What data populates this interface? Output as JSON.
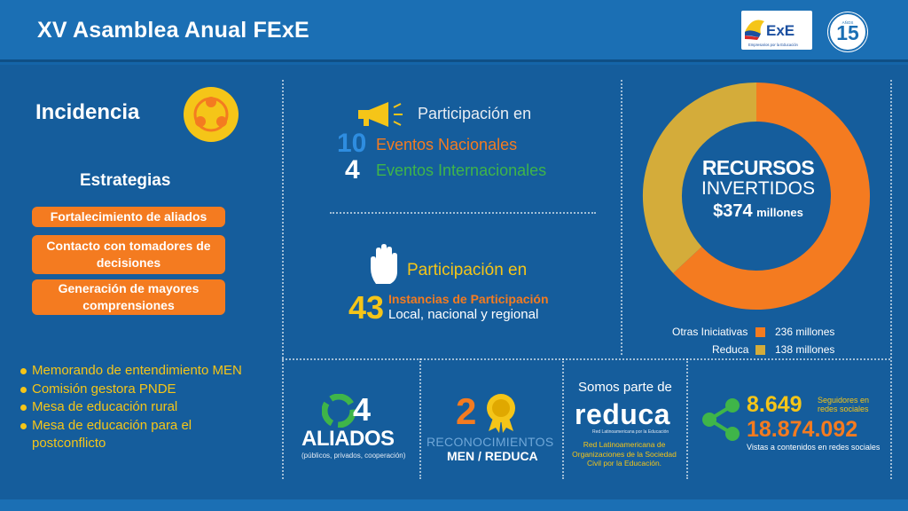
{
  "header": {
    "title": "XV Asamblea Anual FExE",
    "logo_text": "ExE",
    "logo_tagline": "Empresarios por la Educación",
    "anniversary_number": "15",
    "anniversary_word": "AÑOS"
  },
  "incidencia": {
    "title": "Incidencia",
    "strategies_title": "Estrategias",
    "strategies": [
      "Fortalecimiento de aliados",
      "Contacto con tomadores de decisiones",
      "Generación de mayores comprensiones"
    ],
    "bullets": [
      "Memorando de entendimiento MEN",
      "Comisión gestora PNDE",
      "Mesa de educación rural",
      "Mesa de educación para el postconflicto"
    ]
  },
  "events": {
    "label": "Participación en",
    "national_count": "10",
    "national_label": "Eventos Nacionales",
    "international_count": "4",
    "international_label": "Eventos Internacionales"
  },
  "instances": {
    "label": "Participación en",
    "count": "43",
    "line1": "Instancias de Participación",
    "line2": "Local, nacional y regional"
  },
  "resources": {
    "line1": "RECURSOS",
    "line2": "INVERTIDOS",
    "total": "$374",
    "total_unit": "millones",
    "legend": [
      {
        "label": "Otras Iniciativas",
        "value_text": "236 millones",
        "value": 236,
        "color": "#f47b20"
      },
      {
        "label": "Reduca",
        "value_text": "138 millones",
        "value": 138,
        "color": "#d4ac3a"
      }
    ]
  },
  "allies": {
    "count": "4",
    "label": "ALIADOS",
    "sublabel": "(públicos, privados, cooperación)"
  },
  "recognitions": {
    "count": "2",
    "label": "RECONOCIMIENTOS",
    "sublabel": "MEN / REDUCA"
  },
  "reduca": {
    "intro": "Somos parte de",
    "name": "reduca",
    "tiny": "Red Latinoamericana por la Educación",
    "description": "Red Latinoamericana de Organizaciones de la Sociedad Civil por la Educación."
  },
  "social": {
    "followers": "8.649",
    "followers_label": "Seguidores en redes sociales",
    "views": "18.874.092",
    "views_label": "Vistas a contenidos en redes sociales"
  },
  "colors": {
    "orange": "#f47b20",
    "yellow": "#f5c518",
    "gold": "#d4ac3a",
    "green": "#3fb549",
    "blue_bg": "#155d9c"
  }
}
